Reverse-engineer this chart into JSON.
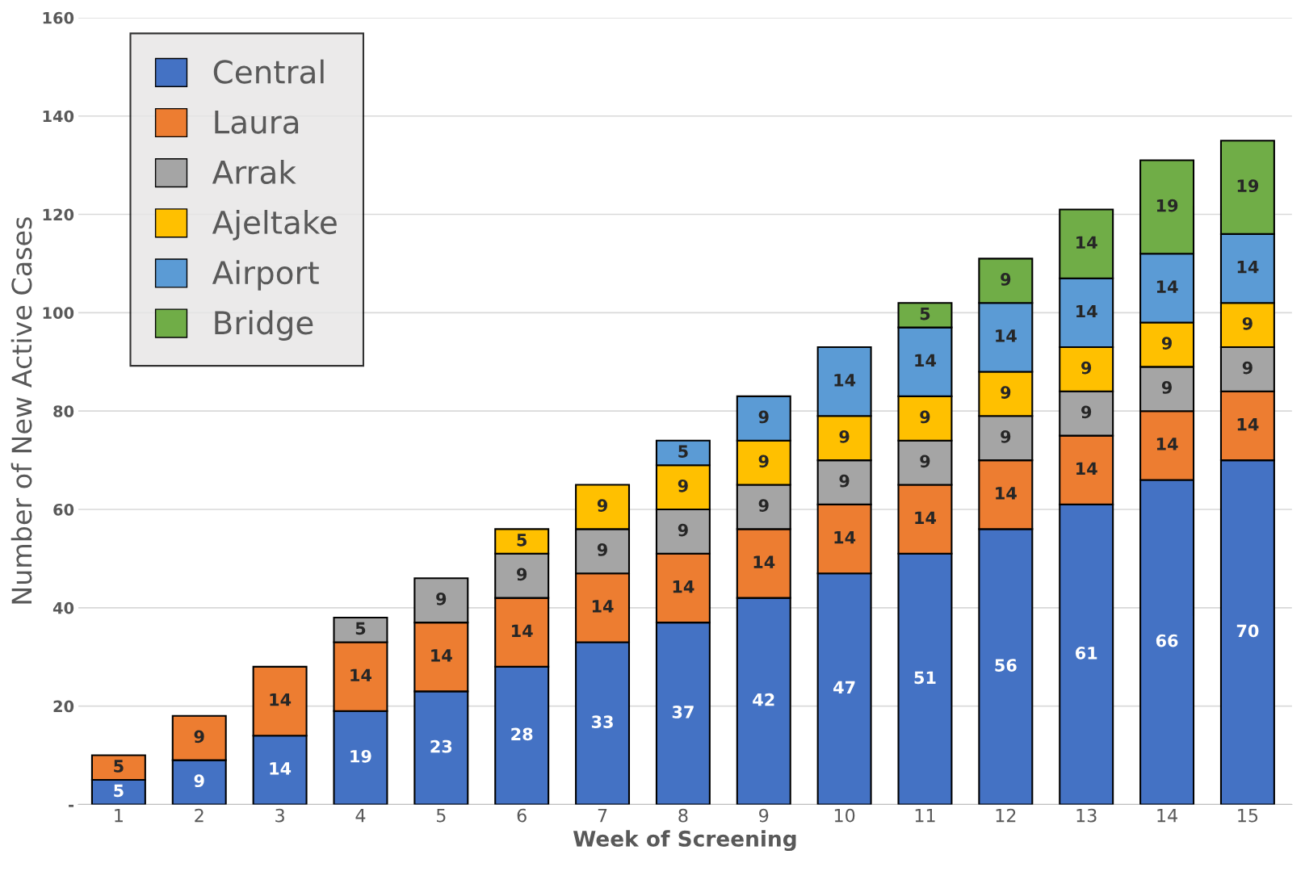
{
  "chart_data": {
    "type": "bar",
    "stacked": true,
    "xlabel": "Week of Screening",
    "ylabel": "Number of New Active Cases",
    "categories": [
      "1",
      "2",
      "3",
      "4",
      "5",
      "6",
      "7",
      "8",
      "9",
      "10",
      "11",
      "12",
      "13",
      "14",
      "15"
    ],
    "series": [
      {
        "name": "Central",
        "color": "#4472c4",
        "values": [
          5,
          9,
          14,
          19,
          23,
          28,
          33,
          37,
          42,
          47,
          51,
          56,
          61,
          66,
          70
        ]
      },
      {
        "name": "Laura",
        "color": "#ed7d31",
        "values": [
          5,
          9,
          14,
          14,
          14,
          14,
          14,
          14,
          14,
          14,
          14,
          14,
          14,
          14,
          14
        ]
      },
      {
        "name": "Arrak",
        "color": "#a5a5a5",
        "values": [
          null,
          null,
          null,
          5,
          9,
          9,
          9,
          9,
          9,
          9,
          9,
          9,
          9,
          9,
          9
        ]
      },
      {
        "name": "Ajeltake",
        "color": "#ffc000",
        "values": [
          null,
          null,
          null,
          null,
          null,
          5,
          9,
          9,
          9,
          9,
          9,
          9,
          9,
          9,
          9
        ]
      },
      {
        "name": "Airport",
        "color": "#5b9bd5",
        "values": [
          null,
          null,
          null,
          null,
          null,
          null,
          null,
          5,
          9,
          14,
          14,
          14,
          14,
          14,
          14
        ]
      },
      {
        "name": "Bridge",
        "color": "#70ad47",
        "values": [
          null,
          null,
          null,
          null,
          null,
          null,
          null,
          null,
          null,
          null,
          5,
          9,
          14,
          19,
          19
        ]
      }
    ],
    "ylim": [
      0,
      160
    ],
    "yticks": [
      {
        "value": 0,
        "label": "-"
      },
      20,
      40,
      60,
      80,
      100,
      120,
      140,
      160
    ],
    "grid": "y",
    "legend": "top left",
    "data_labels": true
  }
}
